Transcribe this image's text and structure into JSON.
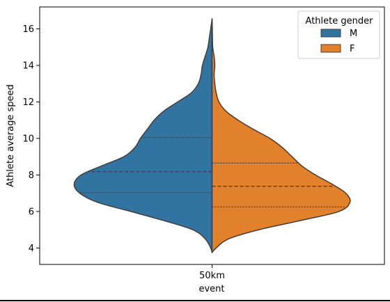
{
  "chart_data": {
    "type": "violin",
    "title": "",
    "xlabel": "event",
    "ylabel": "Athlete average speed",
    "categories": [
      "50km"
    ],
    "ylim": [
      3.1,
      17.2
    ],
    "yticks": [
      4,
      6,
      8,
      10,
      12,
      14,
      16
    ],
    "split": true,
    "inner": "quartile",
    "legend": {
      "title": "Athlete gender",
      "location": "top-right",
      "entries": [
        {
          "label": "M",
          "color": "#3274a1"
        },
        {
          "label": "F",
          "color": "#e1812c"
        }
      ]
    },
    "series": [
      {
        "name": "M",
        "color": "#3274a1",
        "side": "left",
        "range": [
          3.75,
          16.55
        ],
        "quartiles": {
          "q1": 7.03,
          "median": 8.18,
          "q3": 10.05
        },
        "density_profile": [
          {
            "y": 3.75,
            "d": 0.0
          },
          {
            "y": 4.0,
            "d": 0.01
          },
          {
            "y": 4.5,
            "d": 0.05
          },
          {
            "y": 5.0,
            "d": 0.14
          },
          {
            "y": 5.5,
            "d": 0.35
          },
          {
            "y": 6.0,
            "d": 0.59
          },
          {
            "y": 6.5,
            "d": 0.83
          },
          {
            "y": 7.0,
            "d": 0.96
          },
          {
            "y": 7.5,
            "d": 1.0
          },
          {
            "y": 8.0,
            "d": 0.95
          },
          {
            "y": 8.5,
            "d": 0.8
          },
          {
            "y": 9.0,
            "d": 0.64
          },
          {
            "y": 9.5,
            "d": 0.56
          },
          {
            "y": 10.0,
            "d": 0.52
          },
          {
            "y": 10.5,
            "d": 0.47
          },
          {
            "y": 11.0,
            "d": 0.42
          },
          {
            "y": 11.5,
            "d": 0.35
          },
          {
            "y": 12.0,
            "d": 0.25
          },
          {
            "y": 12.5,
            "d": 0.15
          },
          {
            "y": 13.0,
            "d": 0.1
          },
          {
            "y": 13.5,
            "d": 0.08
          },
          {
            "y": 14.0,
            "d": 0.07
          },
          {
            "y": 14.5,
            "d": 0.05
          },
          {
            "y": 15.0,
            "d": 0.03
          },
          {
            "y": 15.5,
            "d": 0.02
          },
          {
            "y": 16.0,
            "d": 0.01
          },
          {
            "y": 16.55,
            "d": 0.0
          }
        ]
      },
      {
        "name": "F",
        "color": "#e1812c",
        "side": "right",
        "range": [
          3.75,
          16.55
        ],
        "quartiles": {
          "q1": 6.25,
          "median": 7.38,
          "q3": 8.65
        },
        "density_profile": [
          {
            "y": 3.75,
            "d": 0.0
          },
          {
            "y": 4.0,
            "d": 0.03
          },
          {
            "y": 4.5,
            "d": 0.12
          },
          {
            "y": 5.0,
            "d": 0.34
          },
          {
            "y": 5.5,
            "d": 0.64
          },
          {
            "y": 6.0,
            "d": 0.92
          },
          {
            "y": 6.5,
            "d": 1.0
          },
          {
            "y": 7.0,
            "d": 0.97
          },
          {
            "y": 7.5,
            "d": 0.87
          },
          {
            "y": 8.0,
            "d": 0.75
          },
          {
            "y": 8.5,
            "d": 0.65
          },
          {
            "y": 9.0,
            "d": 0.58
          },
          {
            "y": 9.5,
            "d": 0.51
          },
          {
            "y": 10.0,
            "d": 0.42
          },
          {
            "y": 10.5,
            "d": 0.3
          },
          {
            "y": 11.0,
            "d": 0.19
          },
          {
            "y": 11.5,
            "d": 0.1
          },
          {
            "y": 12.0,
            "d": 0.05
          },
          {
            "y": 12.5,
            "d": 0.03
          },
          {
            "y": 13.0,
            "d": 0.02
          },
          {
            "y": 13.5,
            "d": 0.015
          },
          {
            "y": 14.0,
            "d": 0.02
          },
          {
            "y": 14.5,
            "d": 0.015
          },
          {
            "y": 15.0,
            "d": 0.005
          },
          {
            "y": 16.0,
            "d": 0.002
          },
          {
            "y": 16.55,
            "d": 0.0
          }
        ]
      }
    ]
  }
}
